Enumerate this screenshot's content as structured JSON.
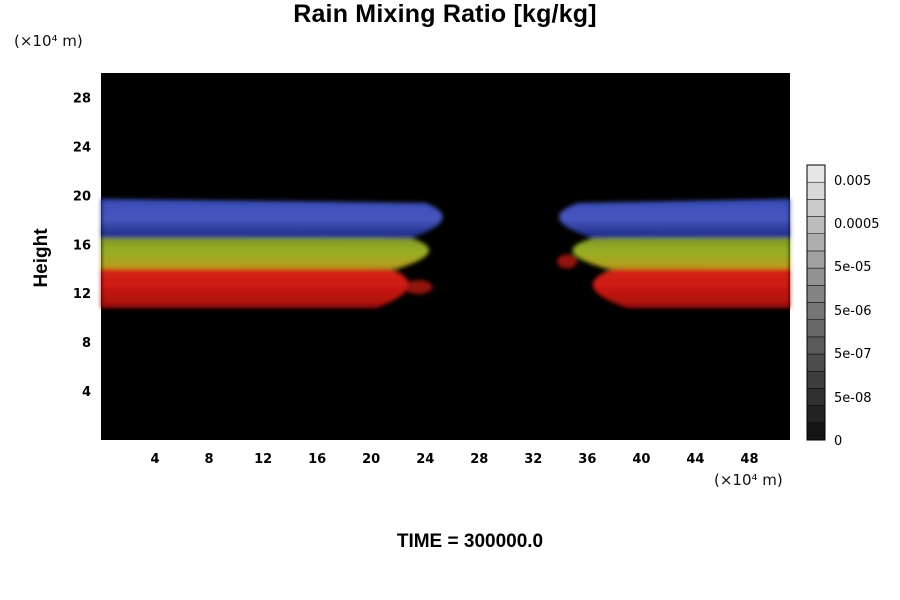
{
  "chart_data": {
    "type": "heatmap",
    "title": "Rain Mixing Ratio [kg/kg]",
    "ylabel": "Height",
    "xlabel": "",
    "x_unit": "(×10⁴ m)",
    "y_unit": "(×10⁴ m)",
    "xlim": [
      0,
      51
    ],
    "ylim": [
      0,
      30
    ],
    "x_ticks": [
      4,
      8,
      12,
      16,
      20,
      24,
      28,
      32,
      36,
      40,
      44,
      48
    ],
    "y_ticks": [
      4,
      8,
      12,
      16,
      20,
      24,
      28
    ],
    "background_color": "#000000",
    "bands": [
      {
        "name": "upper",
        "color": "#2a3aa8",
        "y_range": [
          16.5,
          19.7
        ]
      },
      {
        "name": "middle",
        "color": "#8fa62a",
        "y_range": [
          14.0,
          16.8
        ]
      },
      {
        "name": "lower",
        "color": "#d01818",
        "y_range": [
          10.8,
          14.3
        ]
      }
    ],
    "colorbar": {
      "labels": [
        "0.005",
        "0.0005",
        "5e-05",
        "5e-06",
        "5e-07",
        "5e-08",
        "0"
      ]
    },
    "footer": "TIME = 300000.0"
  }
}
